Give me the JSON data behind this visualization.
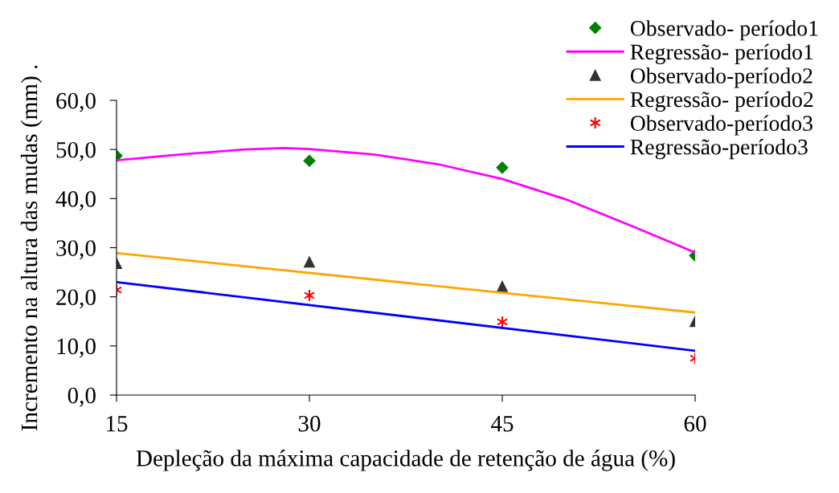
{
  "chart_data": {
    "type": "line",
    "xlabel": "Depleção da máxima capacidade de retenção de água (%)",
    "ylabel": "Incremento na altura das mudas (mm) .",
    "xlim": [
      15,
      60
    ],
    "xticks": [
      15,
      30,
      45,
      60
    ],
    "ylim": [
      0,
      60
    ],
    "yticks": [
      {
        "value": 0,
        "label": "0,0"
      },
      {
        "value": 10,
        "label": "10,0"
      },
      {
        "value": 20,
        "label": "20,0"
      },
      {
        "value": 30,
        "label": "30,0"
      },
      {
        "value": 40,
        "label": "40,0"
      },
      {
        "value": 50,
        "label": "50,0"
      },
      {
        "value": 60,
        "label": "60,0"
      }
    ],
    "grid": false,
    "legend": "top right",
    "series": [
      {
        "name": "Observado- período1",
        "type": "scatter",
        "marker": "diamond",
        "color": "#008000",
        "x": [
          15,
          30,
          45,
          60
        ],
        "values": [
          48.7,
          47.7,
          46.3,
          28.4
        ]
      },
      {
        "name": "Regressão- período1",
        "color": "#ff00ff",
        "x": [
          15,
          20,
          25,
          28,
          30,
          35,
          40,
          45,
          50,
          55,
          60
        ],
        "values": [
          47.8,
          49.0,
          50.0,
          50.3,
          50.1,
          49.0,
          47.0,
          44.0,
          39.8,
          34.5,
          29.0
        ]
      },
      {
        "name": "Observado-período2",
        "type": "scatter",
        "marker": "triangle",
        "color": "#333333",
        "x": [
          15,
          30,
          45,
          60
        ],
        "values": [
          26.8,
          27.1,
          22.1,
          15.0
        ]
      },
      {
        "name": "Regressão- período2",
        "color": "#ffa500",
        "x": [
          15,
          60
        ],
        "values": [
          28.9,
          16.8
        ]
      },
      {
        "name": "Observado-período3",
        "type": "scatter",
        "marker": "cross",
        "color": "#ff0000",
        "x": [
          15,
          30,
          45,
          60
        ],
        "values": [
          21.4,
          20.3,
          14.9,
          7.5
        ]
      },
      {
        "name": "Regressão-período3",
        "color": "#0000ff",
        "x": [
          15,
          60
        ],
        "values": [
          23.0,
          9.0
        ]
      }
    ]
  }
}
